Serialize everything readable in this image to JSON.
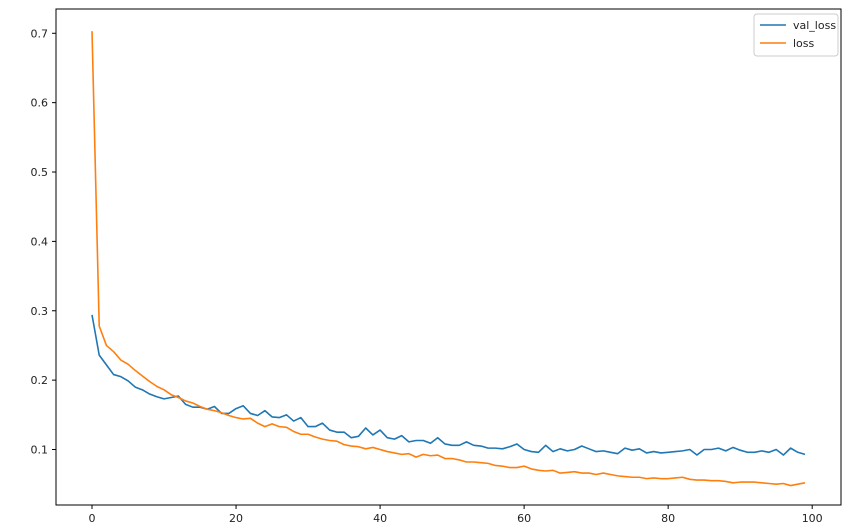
{
  "chart_data": {
    "type": "line",
    "title": "",
    "xlabel": "",
    "ylabel": "",
    "xlim": [
      -5,
      104
    ],
    "ylim": [
      0.02,
      0.735
    ],
    "grid": false,
    "legend_position": "top-right",
    "x_ticks": [
      0,
      20,
      40,
      60,
      80,
      100
    ],
    "x_tick_labels": [
      "0",
      "20",
      "40",
      "60",
      "80",
      "100"
    ],
    "y_ticks": [
      0.1,
      0.2,
      0.3,
      0.4,
      0.5,
      0.6,
      0.7
    ],
    "y_tick_labels": [
      "0.1",
      "0.2",
      "0.3",
      "0.4",
      "0.5",
      "0.6",
      "0.7"
    ],
    "series": [
      {
        "name": "val_loss",
        "color": "#1f77b4",
        "x": [
          0,
          1,
          2,
          3,
          4,
          5,
          6,
          7,
          8,
          9,
          10,
          11,
          12,
          13,
          14,
          15,
          16,
          17,
          18,
          19,
          20,
          21,
          22,
          23,
          24,
          25,
          26,
          27,
          28,
          29,
          30,
          31,
          32,
          33,
          34,
          35,
          36,
          37,
          38,
          39,
          40,
          41,
          42,
          43,
          44,
          45,
          46,
          47,
          48,
          49,
          50,
          51,
          52,
          53,
          54,
          55,
          56,
          57,
          58,
          59,
          60,
          61,
          62,
          63,
          64,
          65,
          66,
          67,
          68,
          69,
          70,
          71,
          72,
          73,
          74,
          75,
          76,
          77,
          78,
          79,
          80,
          81,
          82,
          83,
          84,
          85,
          86,
          87,
          88,
          89,
          90,
          91,
          92,
          93,
          94,
          95,
          96,
          97,
          98,
          99
        ],
        "y": [
          0.294,
          0.236,
          0.222,
          0.208,
          0.205,
          0.199,
          0.19,
          0.186,
          0.18,
          0.176,
          0.173,
          0.175,
          0.177,
          0.165,
          0.161,
          0.161,
          0.158,
          0.162,
          0.152,
          0.152,
          0.159,
          0.163,
          0.152,
          0.149,
          0.156,
          0.147,
          0.146,
          0.15,
          0.141,
          0.146,
          0.133,
          0.133,
          0.138,
          0.128,
          0.125,
          0.125,
          0.117,
          0.119,
          0.131,
          0.121,
          0.128,
          0.117,
          0.115,
          0.12,
          0.111,
          0.113,
          0.113,
          0.109,
          0.117,
          0.108,
          0.106,
          0.106,
          0.111,
          0.106,
          0.105,
          0.102,
          0.102,
          0.101,
          0.104,
          0.108,
          0.1,
          0.097,
          0.096,
          0.106,
          0.097,
          0.101,
          0.098,
          0.1,
          0.105,
          0.101,
          0.097,
          0.098,
          0.096,
          0.094,
          0.102,
          0.099,
          0.101,
          0.095,
          0.097,
          0.095,
          0.096,
          0.097,
          0.098,
          0.1,
          0.092,
          0.1,
          0.1,
          0.102,
          0.098,
          0.103,
          0.099,
          0.096,
          0.096,
          0.098,
          0.096,
          0.1,
          0.092,
          0.102,
          0.096,
          0.093
        ]
      },
      {
        "name": "loss",
        "color": "#ff7f0e",
        "x": [
          0,
          1,
          2,
          3,
          4,
          5,
          6,
          7,
          8,
          9,
          10,
          11,
          12,
          13,
          14,
          15,
          16,
          17,
          18,
          19,
          20,
          21,
          22,
          23,
          24,
          25,
          26,
          27,
          28,
          29,
          30,
          31,
          32,
          33,
          34,
          35,
          36,
          37,
          38,
          39,
          40,
          41,
          42,
          43,
          44,
          45,
          46,
          47,
          48,
          49,
          50,
          51,
          52,
          53,
          54,
          55,
          56,
          57,
          58,
          59,
          60,
          61,
          62,
          63,
          64,
          65,
          66,
          67,
          68,
          69,
          70,
          71,
          72,
          73,
          74,
          75,
          76,
          77,
          78,
          79,
          80,
          81,
          82,
          83,
          84,
          85,
          86,
          87,
          88,
          89,
          90,
          91,
          92,
          93,
          94,
          95,
          96,
          97,
          98,
          99
        ],
        "y": [
          0.703,
          0.278,
          0.25,
          0.241,
          0.229,
          0.223,
          0.214,
          0.206,
          0.198,
          0.191,
          0.186,
          0.179,
          0.175,
          0.17,
          0.167,
          0.162,
          0.158,
          0.156,
          0.153,
          0.149,
          0.146,
          0.144,
          0.145,
          0.138,
          0.133,
          0.137,
          0.133,
          0.132,
          0.126,
          0.122,
          0.122,
          0.118,
          0.115,
          0.113,
          0.112,
          0.107,
          0.105,
          0.104,
          0.101,
          0.103,
          0.1,
          0.097,
          0.095,
          0.093,
          0.094,
          0.089,
          0.093,
          0.091,
          0.092,
          0.087,
          0.087,
          0.085,
          0.082,
          0.082,
          0.081,
          0.08,
          0.077,
          0.076,
          0.074,
          0.074,
          0.076,
          0.072,
          0.07,
          0.069,
          0.07,
          0.066,
          0.067,
          0.068,
          0.066,
          0.066,
          0.064,
          0.066,
          0.064,
          0.062,
          0.061,
          0.06,
          0.06,
          0.058,
          0.059,
          0.058,
          0.058,
          0.059,
          0.06,
          0.057,
          0.056,
          0.056,
          0.055,
          0.055,
          0.054,
          0.052,
          0.053,
          0.053,
          0.053,
          0.052,
          0.051,
          0.05,
          0.051,
          0.048,
          0.05,
          0.052
        ]
      }
    ]
  }
}
